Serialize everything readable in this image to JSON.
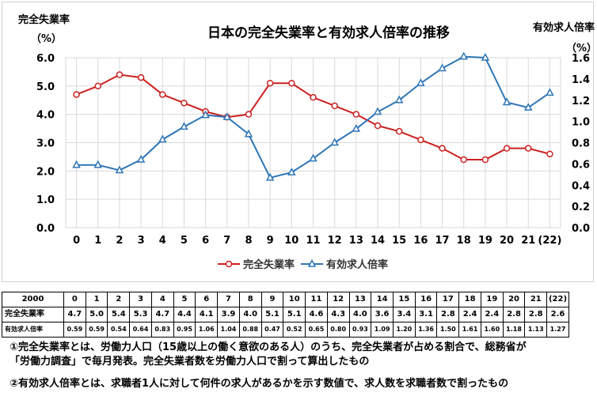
{
  "chart_data": {
    "type": "line",
    "title": "日本の完全失業率と有効求人倍率の推移",
    "y_left_label": "完全失業率",
    "y_left_unit": "（%）",
    "y_right_label": "有効求人倍率",
    "y_right_unit": "（%）",
    "categories": [
      "0",
      "1",
      "2",
      "3",
      "4",
      "5",
      "6",
      "7",
      "8",
      "9",
      "10",
      "11",
      "12",
      "13",
      "14",
      "15",
      "16",
      "17",
      "18",
      "19",
      "20",
      "21",
      "(22)"
    ],
    "y_left_ticks": [
      "0.0",
      "1.0",
      "2.0",
      "3.0",
      "4.0",
      "5.0",
      "6.0"
    ],
    "y_right_ticks": [
      "0.0",
      "0.2",
      "0.4",
      "0.6",
      "0.8",
      "1.0",
      "1.2",
      "1.4",
      "1.6"
    ],
    "y_left_lim": [
      0,
      6
    ],
    "y_right_lim": [
      0,
      1.6
    ],
    "series": [
      {
        "name": "完全失業率",
        "axis": "left",
        "color": "#cc2020",
        "marker": "circle",
        "values": [
          4.7,
          5.0,
          5.4,
          5.3,
          4.7,
          4.4,
          4.1,
          3.9,
          4.0,
          5.1,
          5.1,
          4.6,
          4.3,
          4.0,
          3.6,
          3.4,
          3.1,
          2.8,
          2.4,
          2.4,
          2.8,
          2.8,
          2.6
        ]
      },
      {
        "name": "有効求人倍率",
        "axis": "right",
        "color": "#2e75b6",
        "marker": "triangle",
        "values": [
          0.59,
          0.59,
          0.54,
          0.64,
          0.83,
          0.95,
          1.06,
          1.04,
          0.88,
          0.47,
          0.52,
          0.65,
          0.8,
          0.93,
          1.09,
          1.2,
          1.36,
          1.5,
          1.61,
          1.6,
          1.18,
          1.13,
          1.27
        ]
      }
    ],
    "legend_position": "bottom"
  },
  "table": {
    "year_header": "2000",
    "row_labels": [
      "完全失業率",
      "有効求人倍率"
    ],
    "years": [
      "0",
      "1",
      "2",
      "3",
      "4",
      "5",
      "6",
      "7",
      "8",
      "9",
      "10",
      "11",
      "12",
      "13",
      "14",
      "15",
      "16",
      "17",
      "18",
      "19",
      "20",
      "21",
      "(22)"
    ],
    "unemployment": [
      "4.7",
      "5.0",
      "5.4",
      "5.3",
      "4.7",
      "4.4",
      "4.1",
      "3.9",
      "4.0",
      "5.1",
      "5.1",
      "4.6",
      "4.3",
      "4.0",
      "3.6",
      "3.4",
      "3.1",
      "2.8",
      "2.4",
      "2.4",
      "2.8",
      "2.8",
      "2.6"
    ],
    "job_ratio": [
      "0.59",
      "0.59",
      "0.54",
      "0.64",
      "0.83",
      "0.95",
      "1.06",
      "1.04",
      "0.88",
      "0.47",
      "0.52",
      "0.65",
      "0.80",
      "0.93",
      "1.09",
      "1.20",
      "1.36",
      "1.50",
      "1.61",
      "1.60",
      "1.18",
      "1.13",
      "1.27"
    ]
  },
  "notes": {
    "note1_line1": "①完全失業率とは、労働力人口（15歳以上の働く意欲のある人）のうち、完全失業者が占める割合で、総務省が",
    "note1_line2": "「労働力調査」で毎月発表。完全失業者数を労働力人口で割って算出したもの",
    "note2": "②有効求人倍率とは、求職者1人に対して何件の求人があるかを示す数値で、求人数を求職者数で割ったもの"
  }
}
